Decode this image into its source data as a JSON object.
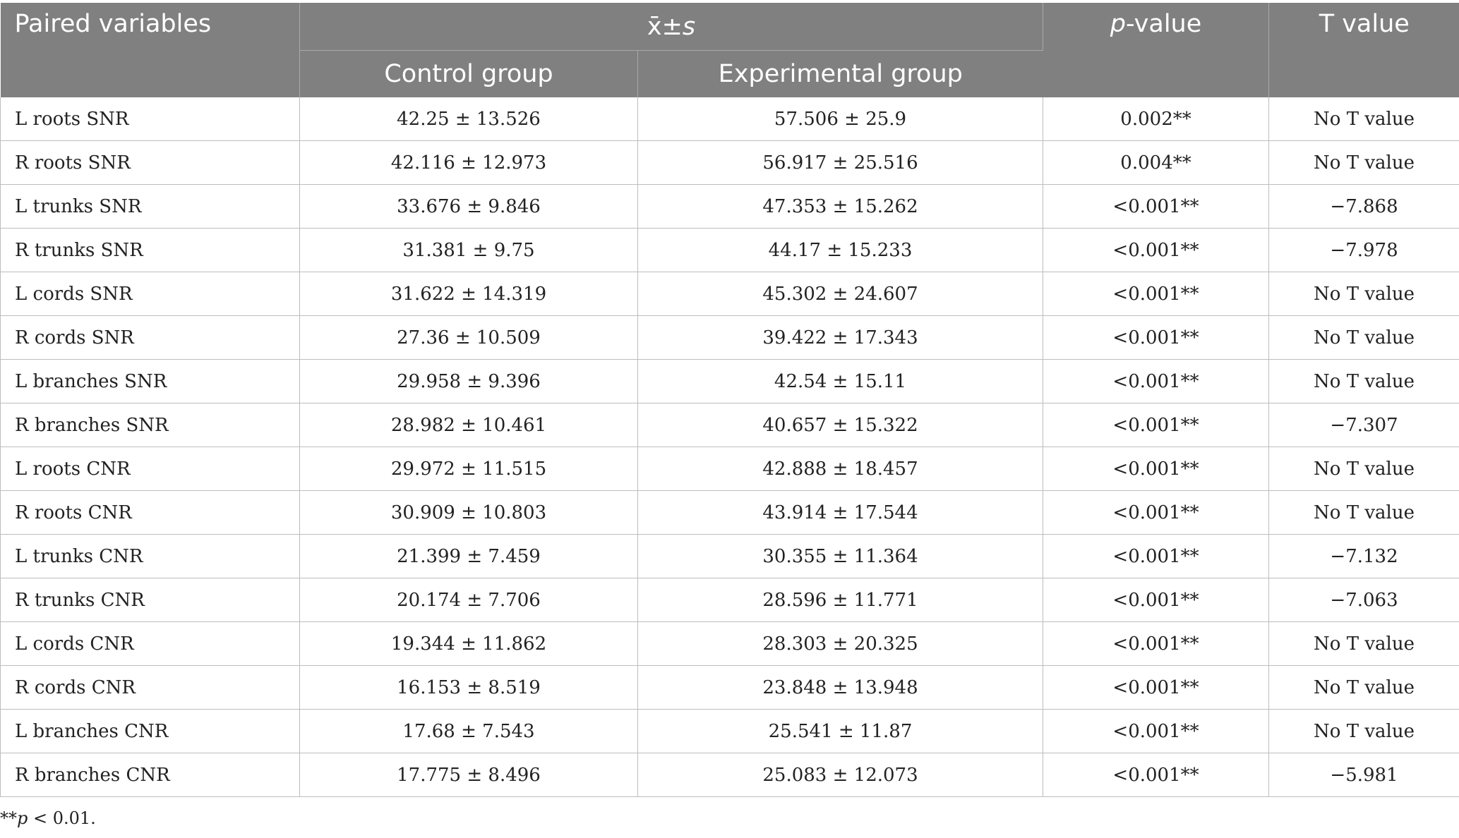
{
  "header": {
    "paired_variables": "Paired variables",
    "mean_sd_label": "x̄±",
    "mean_sd_s": "s",
    "control_group": "Control group",
    "experimental_group": "Experimental group",
    "p_value_italic": "p",
    "p_value_suffix": "-value",
    "t_value": "T value"
  },
  "rows": [
    {
      "variable": "L roots SNR",
      "control": "42.25 ± 13.526",
      "experimental": "57.506 ± 25.9",
      "p": "0.002**",
      "t": "No T value"
    },
    {
      "variable": "R roots SNR",
      "control": "42.116 ± 12.973",
      "experimental": "56.917 ± 25.516",
      "p": "0.004**",
      "t": "No T value"
    },
    {
      "variable": "L trunks SNR",
      "control": "33.676 ± 9.846",
      "experimental": "47.353 ± 15.262",
      "p": "<0.001**",
      "t": "−7.868"
    },
    {
      "variable": "R trunks SNR",
      "control": "31.381 ± 9.75",
      "experimental": "44.17 ± 15.233",
      "p": "<0.001**",
      "t": "−7.978"
    },
    {
      "variable": "L cords SNR",
      "control": "31.622 ± 14.319",
      "experimental": "45.302 ± 24.607",
      "p": "<0.001**",
      "t": "No T value"
    },
    {
      "variable": "R cords SNR",
      "control": "27.36 ± 10.509",
      "experimental": "39.422 ± 17.343",
      "p": "<0.001**",
      "t": "No T value"
    },
    {
      "variable": "L branches SNR",
      "control": "29.958 ± 9.396",
      "experimental": "42.54 ± 15.11",
      "p": "<0.001**",
      "t": "No T value"
    },
    {
      "variable": "R branches SNR",
      "control": "28.982 ± 10.461",
      "experimental": "40.657 ± 15.322",
      "p": "<0.001**",
      "t": "−7.307"
    },
    {
      "variable": "L roots CNR",
      "control": "29.972 ± 11.515",
      "experimental": "42.888 ± 18.457",
      "p": "<0.001**",
      "t": "No T value"
    },
    {
      "variable": "R roots CNR",
      "control": "30.909 ± 10.803",
      "experimental": "43.914 ± 17.544",
      "p": "<0.001**",
      "t": "No T value"
    },
    {
      "variable": "L trunks CNR",
      "control": "21.399 ± 7.459",
      "experimental": "30.355 ± 11.364",
      "p": "<0.001**",
      "t": "−7.132"
    },
    {
      "variable": "R trunks CNR",
      "control": "20.174 ± 7.706",
      "experimental": "28.596 ± 11.771",
      "p": "<0.001**",
      "t": "−7.063"
    },
    {
      "variable": "L cords CNR",
      "control": "19.344 ± 11.862",
      "experimental": "28.303 ± 20.325",
      "p": "<0.001**",
      "t": "No T value"
    },
    {
      "variable": "R cords CNR",
      "control": "16.153 ± 8.519",
      "experimental": "23.848 ± 13.948",
      "p": "<0.001**",
      "t": "No T value"
    },
    {
      "variable": "L branches CNR",
      "control": "17.68 ± 7.543",
      "experimental": "25.541 ± 11.87",
      "p": "<0.001**",
      "t": "No T value"
    },
    {
      "variable": "R branches CNR",
      "control": "17.775 ± 8.496",
      "experimental": "25.083 ± 12.073",
      "p": "<0.001**",
      "t": "−5.981"
    }
  ],
  "footnote": {
    "stars": "**",
    "p_italic": "p",
    "rest": " < 0.01."
  },
  "colors": {
    "header_bg": "#808080",
    "header_text": "#ffffff",
    "grid": "#bdbdbd"
  }
}
